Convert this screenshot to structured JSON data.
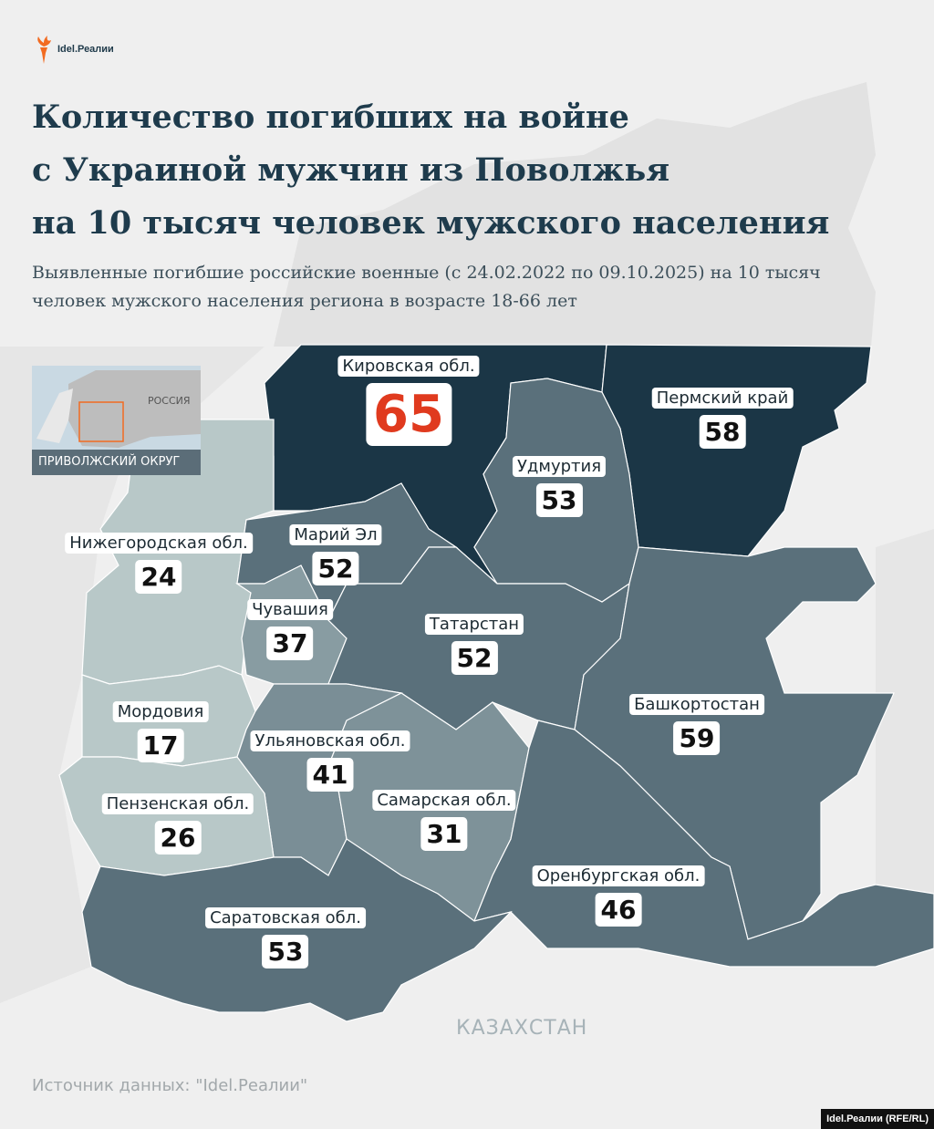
{
  "brand": {
    "logo_text": "Idel.Реалии",
    "accent": "#f26b21"
  },
  "title": "Количество погибших на войне\nс Украиной мужчин из Поволжья\nна 10 тысяч человек мужского населения",
  "subtitle": "Выявленные погибшие российские военные (с 24.02.2022 по 09.10.2025) на 10 тысяч человек мужского населения региона в возрасте 18-66 лет",
  "inset": {
    "country_label": "РОССИЯ",
    "caption": "ПРИВОЛЖСКИЙ ОКРУГ"
  },
  "neighbor_label": "КАЗАХСТАН",
  "regions": [
    {
      "name": "Кировская обл.",
      "value": 65,
      "fill": "#1b3646",
      "highlight": true
    },
    {
      "name": "Пермский край",
      "value": 58,
      "fill": "#1b3646"
    },
    {
      "name": "Удмуртия",
      "value": 53,
      "fill": "#5a707b"
    },
    {
      "name": "Нижегородская обл.",
      "value": 24,
      "fill": "#b8c8c8"
    },
    {
      "name": "Марий Эл",
      "value": 52,
      "fill": "#5a707b"
    },
    {
      "name": "Чувашия",
      "value": 37,
      "fill": "#889ca2"
    },
    {
      "name": "Татарстан",
      "value": 52,
      "fill": "#5a707b"
    },
    {
      "name": "Башкортостан",
      "value": 59,
      "fill": "#5a707b"
    },
    {
      "name": "Мордовия",
      "value": 17,
      "fill": "#b8c8c8"
    },
    {
      "name": "Ульяновская обл.",
      "value": 41,
      "fill": "#7a8e96"
    },
    {
      "name": "Пензенская обл.",
      "value": 26,
      "fill": "#b8c8c8"
    },
    {
      "name": "Самарская обл.",
      "value": 31,
      "fill": "#7e9299"
    },
    {
      "name": "Оренбургская обл.",
      "value": 46,
      "fill": "#5a707b"
    },
    {
      "name": "Саратовская обл.",
      "value": 53,
      "fill": "#5a707b"
    }
  ],
  "source": "Источник данных: \"Idel.Реалии\"",
  "credit": "Idel.Реалии (RFE/RL)"
}
